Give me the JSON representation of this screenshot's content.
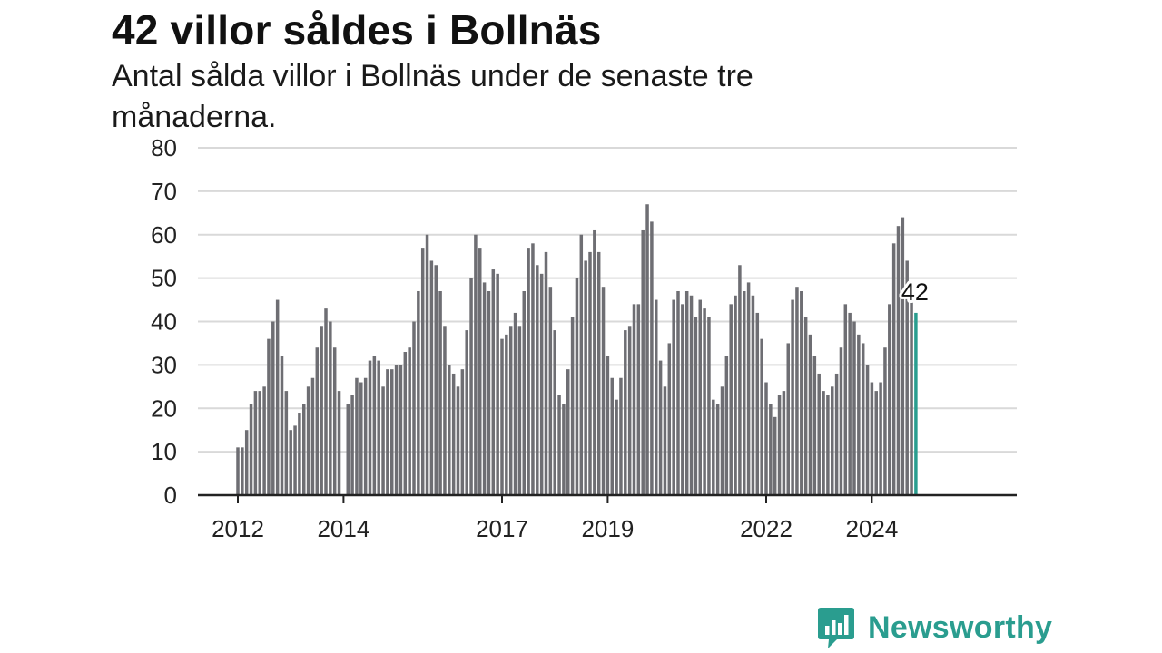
{
  "header": {
    "title": "42 villor såldes i Bollnäs",
    "subtitle": "Antal sålda villor i Bollnäs under de senaste tre månaderna."
  },
  "brand": {
    "name": "Newsworthy",
    "color": "#2a9d8f",
    "icon": "newsworthy-logo-icon"
  },
  "chart_data": {
    "type": "bar",
    "title": "42 villor såldes i Bollnäs",
    "subtitle": "Antal sålda villor i Bollnäs under de senaste tre månaderna.",
    "xlabel": "",
    "ylabel": "",
    "ylim": [
      0,
      80
    ],
    "yticks": [
      0,
      10,
      20,
      30,
      40,
      50,
      60,
      70,
      80
    ],
    "x_tick_labels": [
      "2012",
      "2014",
      "2017",
      "2019",
      "2022",
      "2024"
    ],
    "start_month": "2012-01",
    "grid": true,
    "legend": "none",
    "bar_color": "#6e6e73",
    "highlight_color": "#2a9d8f",
    "highlight_label": "42",
    "values": [
      11,
      11,
      15,
      21,
      24,
      24,
      25,
      36,
      40,
      45,
      32,
      24,
      15,
      16,
      19,
      21,
      25,
      27,
      34,
      39,
      43,
      40,
      34,
      24,
      null,
      21,
      23,
      27,
      26,
      27,
      31,
      32,
      31,
      25,
      29,
      29,
      30,
      30,
      33,
      34,
      40,
      47,
      57,
      60,
      54,
      53,
      47,
      39,
      30,
      28,
      25,
      29,
      38,
      50,
      60,
      57,
      49,
      47,
      52,
      51,
      36,
      37,
      39,
      42,
      39,
      47,
      57,
      58,
      53,
      51,
      56,
      48,
      38,
      23,
      21,
      29,
      41,
      50,
      60,
      54,
      56,
      61,
      56,
      48,
      32,
      27,
      22,
      27,
      38,
      39,
      44,
      44,
      61,
      67,
      63,
      45,
      31,
      25,
      35,
      45,
      47,
      44,
      47,
      46,
      41,
      45,
      43,
      41,
      22,
      21,
      25,
      32,
      44,
      46,
      53,
      47,
      49,
      46,
      42,
      36,
      26,
      21,
      18,
      23,
      24,
      35,
      45,
      48,
      47,
      41,
      37,
      32,
      28,
      24,
      23,
      25,
      28,
      34,
      44,
      42,
      40,
      37,
      35,
      30,
      26,
      24,
      26,
      34,
      44,
      58,
      62,
      64,
      54,
      46,
      42
    ]
  }
}
